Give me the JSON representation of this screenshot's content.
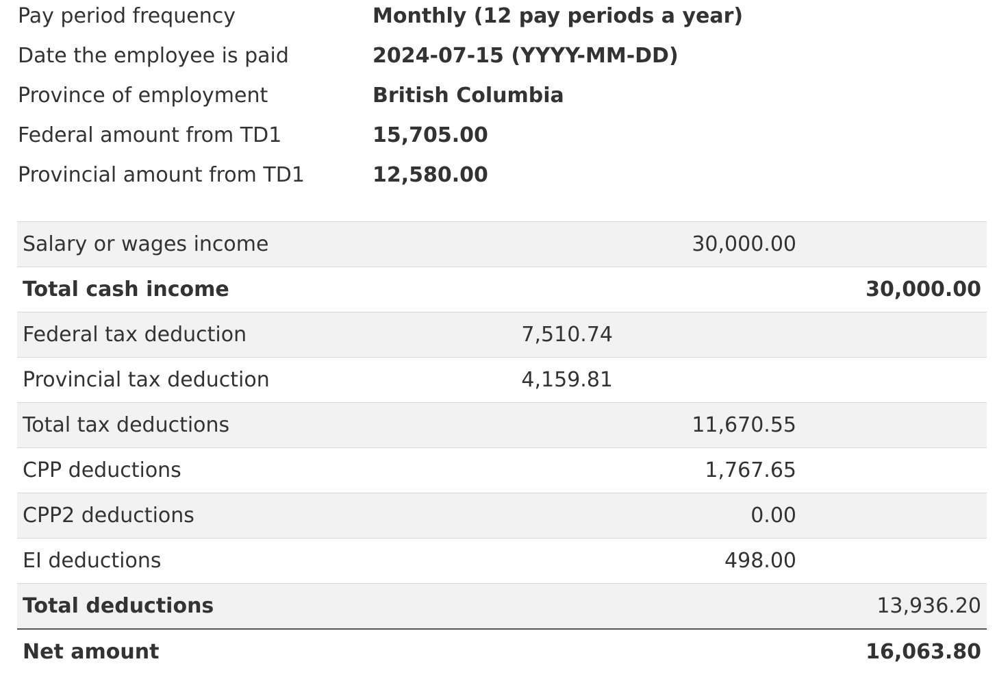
{
  "info": [
    {
      "label": "Pay period frequency",
      "value": "Monthly (12 pay periods a year)"
    },
    {
      "label": "Date the employee is paid",
      "value": "2024-07-15 (YYYY-MM-DD)"
    },
    {
      "label": "Province of employment",
      "value": "British Columbia"
    },
    {
      "label": "Federal amount from TD1",
      "value": "15,705.00"
    },
    {
      "label": "Provincial amount from TD1",
      "value": "12,580.00"
    }
  ],
  "table": {
    "rows": [
      [
        "Salary or wages income",
        null,
        "30,000.00",
        null
      ],
      [
        "Total cash income",
        null,
        null,
        "30,000.00"
      ],
      [
        "Federal tax deduction",
        "7,510.74",
        null,
        null
      ],
      [
        "Provincial tax deduction",
        "4,159.81",
        null,
        null
      ],
      [
        "Total tax deductions",
        null,
        "11,670.55",
        null
      ],
      [
        "CPP deductions",
        null,
        "1,767.65",
        null
      ],
      [
        "CPP2 deductions",
        null,
        "0.00",
        null
      ],
      [
        "EI deductions",
        null,
        "498.00",
        null
      ],
      [
        "Total deductions",
        null,
        null,
        "13,936.20"
      ],
      [
        "Net amount",
        null,
        null,
        "16,063.80"
      ]
    ]
  }
}
